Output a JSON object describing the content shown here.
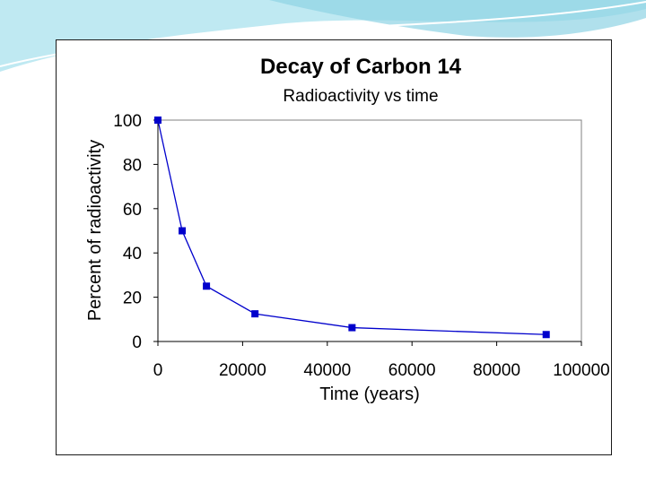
{
  "colors": {
    "accent_light": "#bfe9f2",
    "accent_mid": "#8fd3e4",
    "series": "#0000cc",
    "plot_bg": "#ffffff"
  },
  "chart_data": {
    "type": "line",
    "title": "Decay of Carbon 14",
    "subtitle": "Radioactivity vs time",
    "xlabel": "Time (years)",
    "ylabel": "Percent of radioactivity",
    "xlim": [
      0,
      100000
    ],
    "ylim": [
      0,
      100
    ],
    "x_ticks": [
      0,
      20000,
      40000,
      60000,
      80000,
      100000
    ],
    "x_tick_labels": [
      "0",
      "20000",
      "40000",
      "60000",
      "80000",
      "100000"
    ],
    "y_ticks": [
      0,
      20,
      40,
      60,
      80,
      100
    ],
    "y_tick_labels": [
      "0",
      "20",
      "40",
      "60",
      "80",
      "100"
    ],
    "grid": false,
    "series": [
      {
        "name": "Carbon 14",
        "x": [
          0,
          5730,
          11460,
          22920,
          45840,
          91680
        ],
        "y": [
          100,
          50,
          25,
          12.5,
          6.25,
          3.13
        ]
      }
    ]
  }
}
